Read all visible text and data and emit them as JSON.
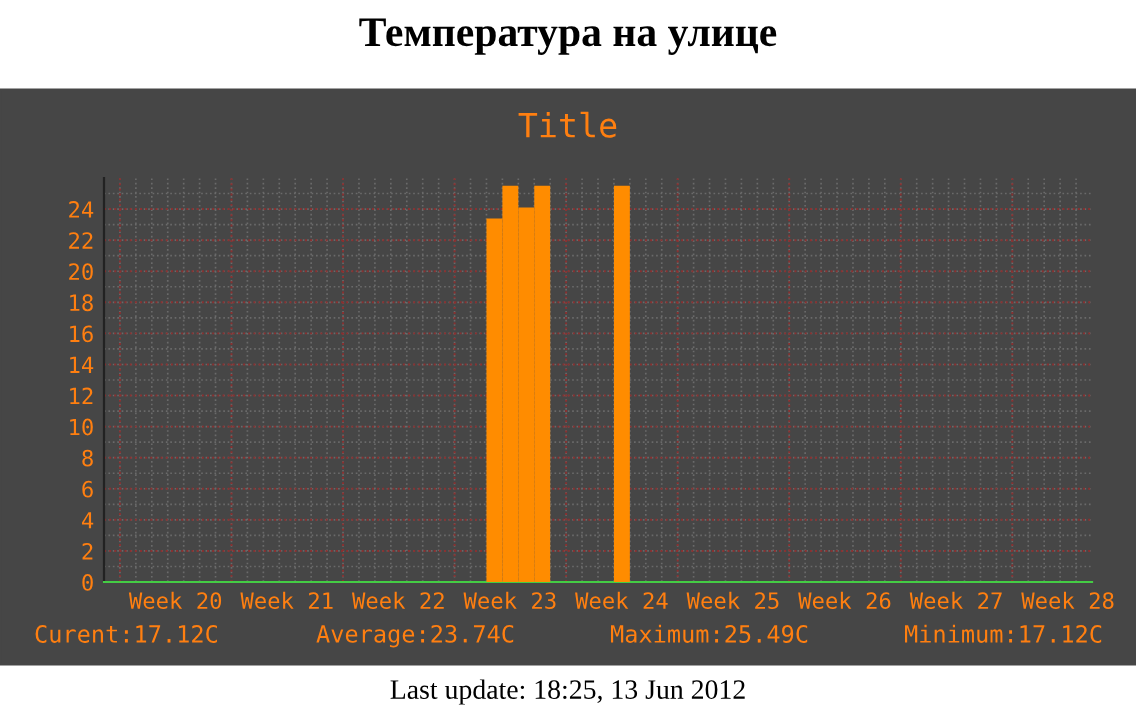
{
  "chart_data": {
    "type": "bar",
    "title": "Температура на улице",
    "subtitle": "Title",
    "categories": [
      null,
      null,
      null,
      null,
      "Week 20",
      null,
      null,
      null,
      null,
      null,
      null,
      "Week 21",
      null,
      null,
      null,
      null,
      null,
      null,
      "Week 22",
      null,
      null,
      null,
      null,
      null,
      null,
      "Week 23",
      null,
      null,
      null,
      null,
      null,
      null,
      "Week 24",
      null,
      null,
      null,
      null,
      null,
      null,
      "Week 25",
      null,
      null,
      null,
      null,
      null,
      null,
      "Week 26",
      null,
      null,
      null,
      null,
      null,
      null,
      "Week 27",
      null,
      null,
      null,
      null,
      null,
      null,
      "Week 28",
      null
    ],
    "series": [
      {
        "color": "#ff8c00",
        "values": [
          null,
          null,
          null,
          null,
          null,
          null,
          null,
          null,
          null,
          null,
          null,
          null,
          null,
          null,
          null,
          null,
          null,
          null,
          null,
          null,
          null,
          null,
          null,
          null,
          23.4,
          25.5,
          24.1,
          25.5,
          null,
          null,
          null,
          null,
          25.5,
          null,
          null,
          null,
          null,
          null,
          null,
          null,
          null,
          null,
          null,
          null,
          null,
          null,
          null,
          null,
          null,
          null,
          null,
          null,
          null,
          null,
          null,
          null,
          null,
          null,
          null,
          null,
          null,
          null
        ]
      }
    ],
    "ylim": [
      0,
      26
    ],
    "yticks": [
      0,
      2,
      4,
      6,
      8,
      10,
      12,
      14,
      16,
      18,
      20,
      22,
      24
    ],
    "grid": true,
    "annotations": [
      "Curent:17.12C",
      "Average:23.74C",
      "Maximum:25.49C",
      "Minimum:17.12C",
      "Last update: 18:25, 13 Jun 2012"
    ]
  }
}
